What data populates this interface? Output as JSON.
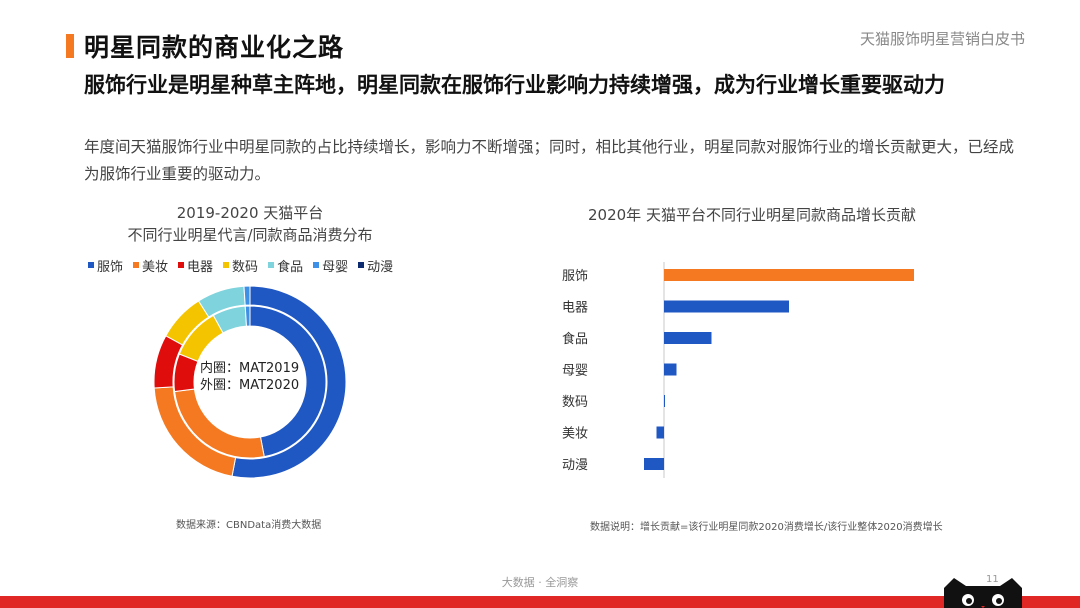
{
  "header": {
    "title": "明星同款的商业化之路",
    "brand": "天猫服饰明星营销白皮书"
  },
  "headline": "服饰行业是明星种草主阵地，明星同款在服饰行业影响力持续增强，成为行业增长重要驱动力",
  "body": "年度间天猫服饰行业中明星同款的占比持续增长，影响力不断增强；同时，相比其他行业，明星同款对服饰行业的增长贡献更大，已经成为服饰行业重要的驱动力。",
  "footer": {
    "text": "大数据 · 全洞察",
    "page": "11"
  },
  "colors": {
    "accent": "#f47920",
    "strip": "#e02726"
  },
  "chart_data": [
    {
      "type": "pie",
      "variant": "donut-double-ring",
      "title": "2019-2020 天猫平台",
      "subtitle": "不同行业明星代言/同款商品消费分布",
      "center_label": [
        "内圈：MAT2019",
        "外圈：MAT2020"
      ],
      "categories": [
        "服饰",
        "美妆",
        "电器",
        "数码",
        "食品",
        "母婴",
        "动漫"
      ],
      "colors": [
        "#1f57c3",
        "#f47920",
        "#e00d0d",
        "#f5c400",
        "#7ed3dc",
        "#3e8fe6",
        "#0b2a6f"
      ],
      "legend_position": "top",
      "series": [
        {
          "name": "MAT2019",
          "ring": "inner",
          "values": [
            47,
            26,
            8,
            11,
            7,
            1,
            0
          ]
        },
        {
          "name": "MAT2020",
          "ring": "outer",
          "values": [
            53,
            21,
            9,
            8,
            8,
            1,
            0
          ]
        }
      ],
      "source": "数据来源：CBNData消费大数据"
    },
    {
      "type": "bar",
      "orientation": "horizontal",
      "title": "2020年 天猫平台不同行业明星同款商品增长贡献",
      "categories": [
        "服饰",
        "电器",
        "食品",
        "母婴",
        "数码",
        "美妆",
        "动漫"
      ],
      "values": [
        100,
        50,
        19,
        5,
        0.4,
        -3,
        -8
      ],
      "colors": [
        "#f47920",
        "#1f57c3",
        "#1f57c3",
        "#1f57c3",
        "#1f57c3",
        "#1f57c3",
        "#1f57c3"
      ],
      "xlim": [
        -10,
        100
      ],
      "grid": false,
      "note": "数据说明：增长贡献=该行业明星同款2020消费增长/该行业整体2020消费增长"
    }
  ]
}
